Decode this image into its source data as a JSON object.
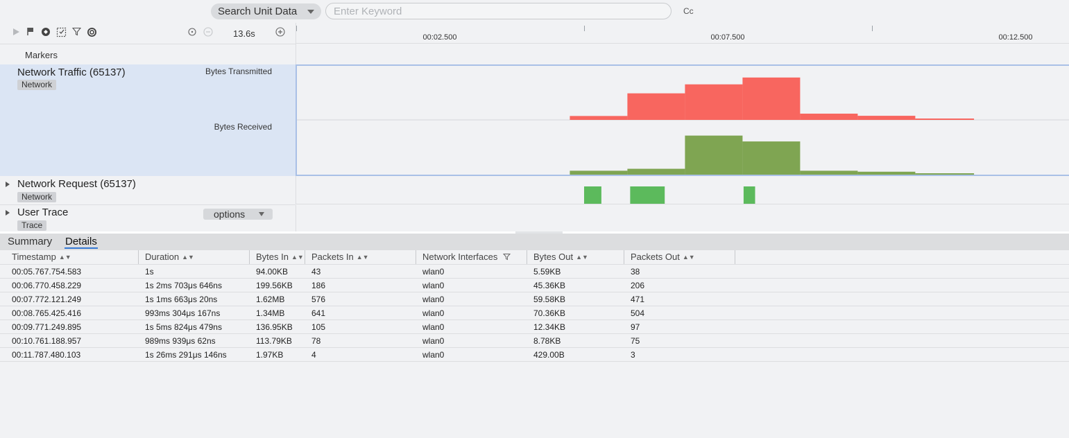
{
  "search": {
    "scope_label": "Search Unit Data",
    "keyword_placeholder": "Enter Keyword",
    "keyword_value": "",
    "case_toggle_label": "Cc"
  },
  "toolbar": {
    "icons": [
      "play-icon",
      "flag-icon",
      "target-icon",
      "select-region-icon",
      "filter-icon",
      "settings-icon",
      "reset-zoom-icon",
      "zoom-out-icon",
      "zoom-in-icon"
    ],
    "zoom_value": "13.6s"
  },
  "ruler": {
    "ticks": [
      "00:02.500",
      "00:07.500",
      "00:12.500"
    ]
  },
  "lanes": {
    "markers": {
      "label": "Markers"
    },
    "network_traffic": {
      "title": "Network Traffic (65137)",
      "tag": "Network",
      "sub_labels": [
        "Bytes Transmitted",
        "Bytes Received"
      ],
      "colors": {
        "transmitted": "#f8665f",
        "received": "#7fa552"
      }
    },
    "network_request": {
      "title": "Network Request (65137)",
      "tag": "Network",
      "color": "#5cba5c"
    },
    "user_trace": {
      "title": "User Trace",
      "tag": "Trace",
      "options_label": "options"
    }
  },
  "chart_data": {
    "type": "area",
    "x_unit": "seconds",
    "xlim": [
      0,
      13.6
    ],
    "series": [
      {
        "name": "Bytes Transmitted",
        "x": [
          4.77,
          5.77,
          6.77,
          7.77,
          8.77,
          9.77,
          10.77,
          11.79
        ],
        "values": [
          2.0,
          13.6,
          18.2,
          21.7,
          3.2,
          2.1,
          0.3,
          0
        ]
      },
      {
        "name": "Bytes Received",
        "x": [
          4.77,
          5.77,
          6.77,
          7.77,
          8.77,
          9.77,
          10.77,
          11.79
        ],
        "values": [
          2.0,
          3.0,
          20.0,
          17.0,
          2.0,
          1.5,
          0.1,
          0
        ]
      }
    ],
    "requests": [
      {
        "start": 5.03,
        "end": 5.33
      },
      {
        "start": 5.83,
        "end": 6.43
      },
      {
        "start": 7.8,
        "end": 8.0
      }
    ]
  },
  "tabs": [
    "Summary",
    "Details"
  ],
  "active_tab": "Details",
  "table": {
    "columns": [
      "Timestamp",
      "Duration",
      "Bytes In",
      "Packets In",
      "Network Interfaces",
      "Bytes Out",
      "Packets Out"
    ],
    "rows": [
      [
        "00:05.767.754.583",
        "1s",
        "94.00KB",
        "43",
        "wlan0",
        "5.59KB",
        "38"
      ],
      [
        "00:06.770.458.229",
        "1s 2ms 703μs 646ns",
        "199.56KB",
        "186",
        "wlan0",
        "45.36KB",
        "206"
      ],
      [
        "00:07.772.121.249",
        "1s 1ms 663μs 20ns",
        "1.62MB",
        "576",
        "wlan0",
        "59.58KB",
        "471"
      ],
      [
        "00:08.765.425.416",
        "993ms 304μs 167ns",
        "1.34MB",
        "641",
        "wlan0",
        "70.36KB",
        "504"
      ],
      [
        "00:09.771.249.895",
        "1s 5ms 824μs 479ns",
        "136.95KB",
        "105",
        "wlan0",
        "12.34KB",
        "97"
      ],
      [
        "00:10.761.188.957",
        "989ms 939μs 62ns",
        "113.79KB",
        "78",
        "wlan0",
        "8.78KB",
        "75"
      ],
      [
        "00:11.787.480.103",
        "1s 26ms 291μs 146ns",
        "1.97KB",
        "4",
        "wlan0",
        "429.00B",
        "3"
      ]
    ]
  }
}
